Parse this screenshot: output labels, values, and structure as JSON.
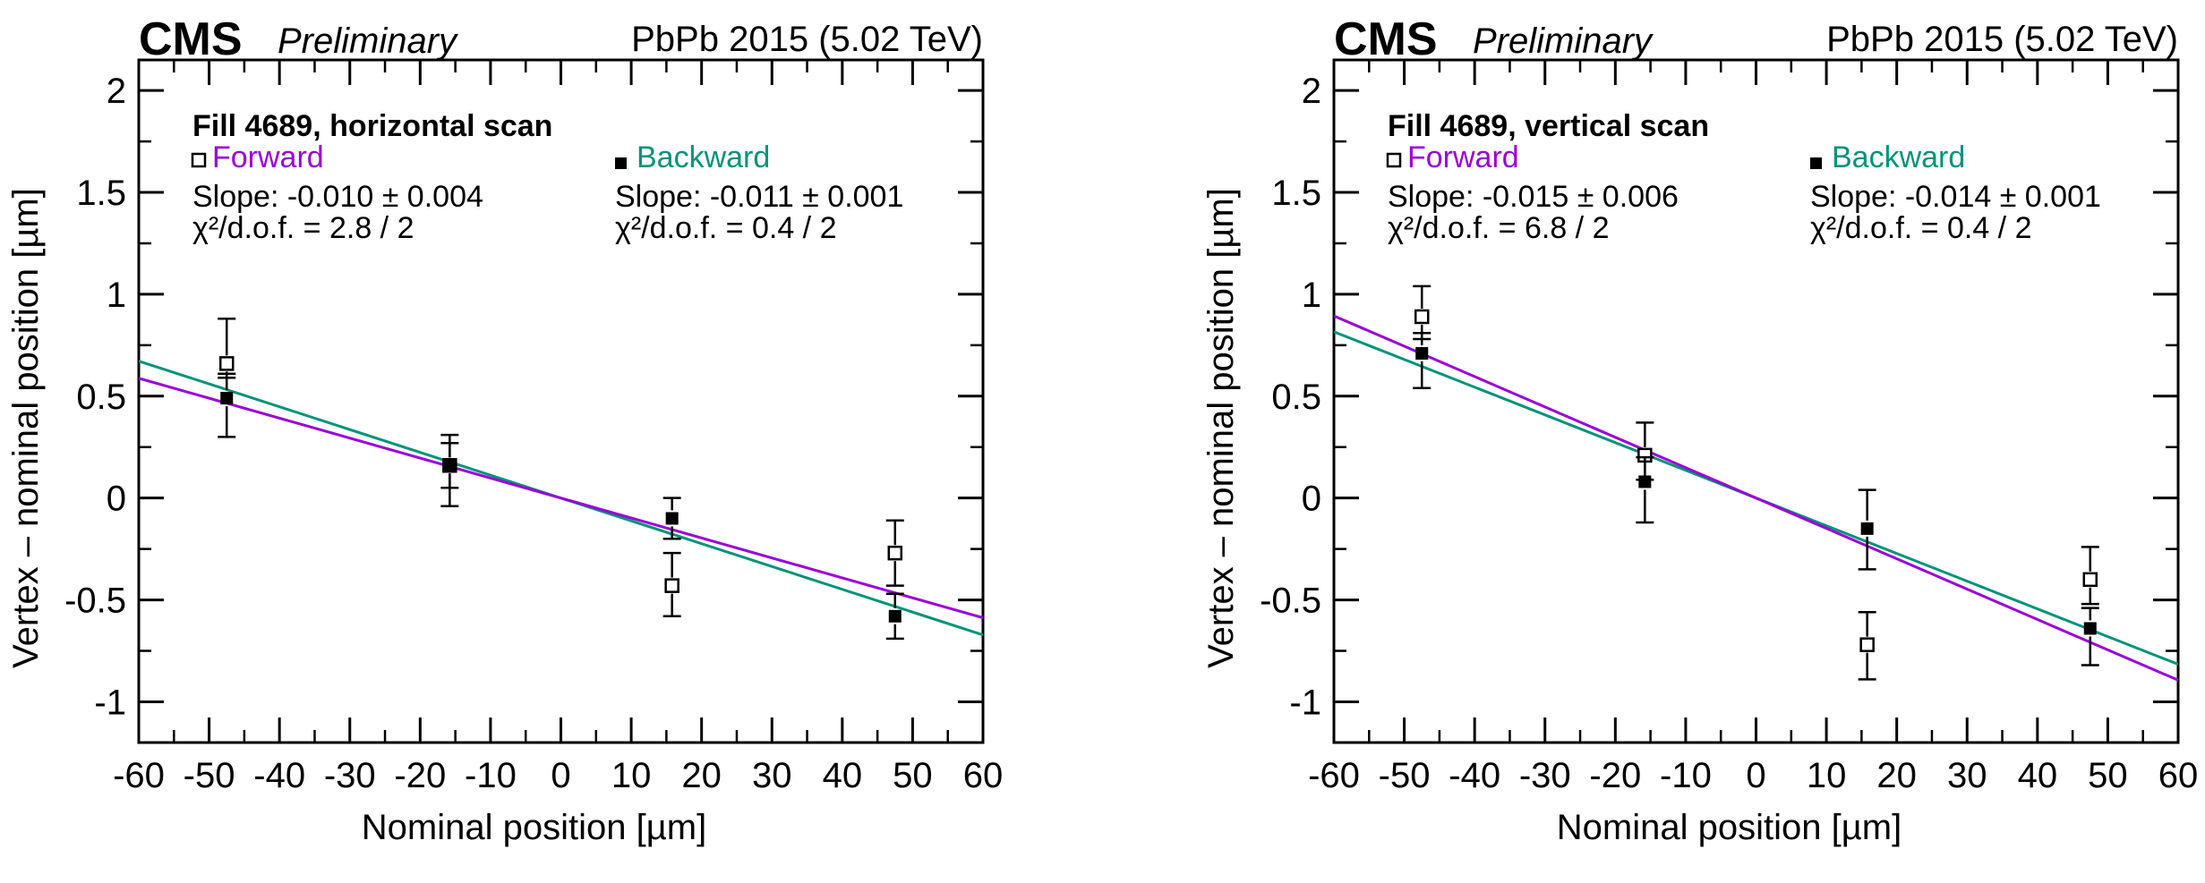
{
  "colors": {
    "forward": "#9a00d6",
    "backward": "#00937a",
    "axis": "#000000"
  },
  "chart_data": [
    {
      "type": "scatter",
      "experiment": "CMS",
      "status": "Preliminary",
      "run_label": "PbPb 2015 (5.02 TeV)",
      "title": "Fill 4689, horizontal scan",
      "xlabel": "Nominal position [µm]",
      "ylabel": "Vertex – nominal position [µm]",
      "xlim": [
        -60,
        60
      ],
      "ylim": [
        -1.2,
        2.15
      ],
      "xticks": [
        -60,
        -50,
        -40,
        -30,
        -20,
        -10,
        0,
        10,
        20,
        30,
        40,
        50,
        60
      ],
      "xtick_labels": [
        "-60",
        "-50",
        "-40",
        "-30",
        "-20",
        "-10",
        "0",
        "10",
        "20",
        "30",
        "40",
        "50",
        "60"
      ],
      "yticks": [
        -1,
        -0.5,
        0,
        0.5,
        1,
        1.5,
        2
      ],
      "ytick_labels": [
        "-1",
        "-0.5",
        "0",
        "0.5",
        "1",
        "1.5",
        "2"
      ],
      "series": [
        {
          "name": "Forward",
          "marker": "open-square",
          "color_key": "forward",
          "slope_text": "Slope: -0.010 ± 0.004",
          "chi2_text": "χ²/d.o.f. = 2.8 / 2",
          "fit": {
            "slope": -0.0098,
            "intercept": 0.0
          },
          "points": [
            {
              "x": -47.5,
              "y": 0.66,
              "err_lo": 0.07,
              "err_hi": 0.22
            },
            {
              "x": -15.8,
              "y": 0.16,
              "err_lo": 0.11,
              "err_hi": 0.15
            },
            {
              "x": 15.8,
              "y": -0.43,
              "err_lo": 0.15,
              "err_hi": 0.16
            },
            {
              "x": 47.5,
              "y": -0.27,
              "err_lo": 0.16,
              "err_hi": 0.16
            }
          ]
        },
        {
          "name": "Backward",
          "marker": "filled-square",
          "color_key": "backward",
          "slope_text": "Slope: -0.011 ± 0.001",
          "chi2_text": "χ²/d.o.f. = 0.4 / 2",
          "fit": {
            "slope": -0.0112,
            "intercept": 0.0
          },
          "points": [
            {
              "x": -47.5,
              "y": 0.49,
              "err_lo": 0.19,
              "err_hi": 0.12
            },
            {
              "x": -15.8,
              "y": 0.16,
              "err_lo": 0.2,
              "err_hi": 0.11
            },
            {
              "x": 15.8,
              "y": -0.1,
              "err_lo": 0.1,
              "err_hi": 0.1
            },
            {
              "x": 47.5,
              "y": -0.58,
              "err_lo": 0.11,
              "err_hi": 0.11
            }
          ]
        }
      ]
    },
    {
      "type": "scatter",
      "experiment": "CMS",
      "status": "Preliminary",
      "run_label": "PbPb 2015 (5.02 TeV)",
      "title": "Fill 4689, vertical scan",
      "xlabel": "Nominal position [µm]",
      "ylabel": "Vertex – nominal position [µm]",
      "xlim": [
        -60,
        60
      ],
      "ylim": [
        -1.2,
        2.15
      ],
      "xticks": [
        -60,
        -50,
        -40,
        -30,
        -20,
        -10,
        0,
        10,
        20,
        30,
        40,
        50,
        60
      ],
      "xtick_labels": [
        "-60",
        "-50",
        "-40",
        "-30",
        "-20",
        "-10",
        "0",
        "10",
        "20",
        "30",
        "40",
        "50",
        "60"
      ],
      "yticks": [
        -1,
        -0.5,
        0,
        0.5,
        1,
        1.5,
        2
      ],
      "ytick_labels": [
        "-1",
        "-0.5",
        "0",
        "0.5",
        "1",
        "1.5",
        "2"
      ],
      "series": [
        {
          "name": "Forward",
          "marker": "open-square",
          "color_key": "forward",
          "slope_text": "Slope: -0.015 ± 0.006",
          "chi2_text": "χ²/d.o.f. = 6.8 / 2",
          "fit": {
            "slope": -0.0149,
            "intercept": 0.0
          },
          "points": [
            {
              "x": -47.5,
              "y": 0.89,
              "err_lo": 0.11,
              "err_hi": 0.15
            },
            {
              "x": -15.8,
              "y": 0.21,
              "err_lo": 0.12,
              "err_hi": 0.16
            },
            {
              "x": 15.8,
              "y": -0.72,
              "err_lo": 0.17,
              "err_hi": 0.16
            },
            {
              "x": 47.5,
              "y": -0.4,
              "err_lo": 0.12,
              "err_hi": 0.16
            }
          ]
        },
        {
          "name": "Backward",
          "marker": "filled-square",
          "color_key": "backward",
          "slope_text": "Slope: -0.014 ± 0.001",
          "chi2_text": "χ²/d.o.f. = 0.4 / 2",
          "fit": {
            "slope": -0.0136,
            "intercept": 0.0
          },
          "points": [
            {
              "x": -47.5,
              "y": 0.71,
              "err_lo": 0.17,
              "err_hi": 0.1
            },
            {
              "x": -15.8,
              "y": 0.08,
              "err_lo": 0.2,
              "err_hi": 0.12
            },
            {
              "x": 15.8,
              "y": -0.15,
              "err_lo": 0.2,
              "err_hi": 0.19
            },
            {
              "x": 47.5,
              "y": -0.64,
              "err_lo": 0.18,
              "err_hi": 0.1
            }
          ]
        }
      ]
    }
  ]
}
